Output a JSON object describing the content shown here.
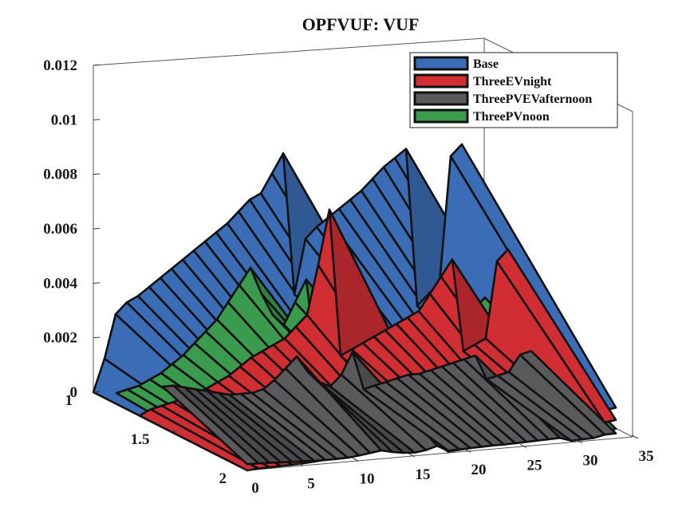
{
  "chart_data": {
    "type": "surface-3d",
    "title": "OPFVUF: VUF",
    "xlabel": "",
    "ylabel": "",
    "zlabel": "",
    "x_ticks": [
      "0",
      "5",
      "10",
      "15",
      "20",
      "25",
      "30",
      "35"
    ],
    "y_ticks": [
      "1",
      "1.5",
      "2"
    ],
    "z_ticks": [
      "0",
      "0.002",
      "0.004",
      "0.006",
      "0.008",
      "0.01",
      "0.012"
    ],
    "xlim": [
      0,
      35
    ],
    "ylim": [
      1,
      2
    ],
    "zlim": [
      0,
      0.012
    ],
    "legend_position": "top-right",
    "x": [
      0,
      1,
      2,
      3,
      4,
      5,
      6,
      7,
      8,
      9,
      10,
      11,
      12,
      13,
      14,
      15,
      16,
      17,
      18,
      19,
      20,
      21,
      22,
      23,
      24,
      25,
      26,
      27,
      28,
      29,
      30,
      31,
      32,
      33
    ],
    "series": [
      {
        "name": "Base",
        "color": "#3a6db5",
        "values": [
          0,
          0.0012,
          0.0028,
          0.0032,
          0.0034,
          0.0037,
          0.004,
          0.0043,
          0.0046,
          0.0049,
          0.0052,
          0.0055,
          0.0058,
          0.0062,
          0.0066,
          0.0068,
          0.0075,
          0.0082,
          0.003,
          0.005,
          0.0054,
          0.0057,
          0.006,
          0.0063,
          0.0066,
          0.007,
          0.0074,
          0.0077,
          0.008,
          0.0022,
          0.0026,
          0.003,
          0.0076,
          0.008
        ]
      },
      {
        "name": "ThreeEVnight",
        "color": "#d12e33",
        "values": [
          0,
          0.0002,
          0.0003,
          0.0004,
          0.0005,
          0.0006,
          0.0008,
          0.001,
          0.0012,
          0.0015,
          0.0018,
          0.002,
          0.0022,
          0.0024,
          0.0028,
          0.0032,
          0.005,
          0.007,
          0.0016,
          0.0018,
          0.002,
          0.0022,
          0.0024,
          0.0026,
          0.0028,
          0.003,
          0.0036,
          0.0042,
          0.0048,
          0.0014,
          0.0016,
          0.0018,
          0.0046,
          0.005
        ]
      },
      {
        "name": "ThreePVEVafternoon",
        "color": "#5a595b",
        "values": [
          0.0015,
          0.0015,
          0.0014,
          0.0013,
          0.0012,
          0.0011,
          0.001,
          0.001,
          0.001,
          0.0011,
          0.0014,
          0.0018,
          0.0022,
          0.0016,
          0.0012,
          0.001,
          0.0014,
          0.0022,
          0.0008,
          0.0009,
          0.001,
          0.0011,
          0.0012,
          0.0012,
          0.0013,
          0.0014,
          0.0015,
          0.0016,
          0.0017,
          0.0008,
          0.0009,
          0.001,
          0.0016,
          0.0017
        ]
      },
      {
        "name": "ThreePVnoon",
        "color": "#3a9a4e",
        "values": [
          0.0004,
          0.0005,
          0.0006,
          0.0008,
          0.001,
          0.0013,
          0.0016,
          0.002,
          0.0024,
          0.0028,
          0.0034,
          0.004,
          0.0046,
          0.0036,
          0.0028,
          0.0024,
          0.0032,
          0.004,
          0.0006,
          0.0008,
          0.001,
          0.0012,
          0.0014,
          0.0016,
          0.0018,
          0.002,
          0.0022,
          0.0024,
          0.0026,
          0.0008,
          0.001,
          0.0012,
          0.0024,
          0.0028
        ]
      }
    ]
  }
}
